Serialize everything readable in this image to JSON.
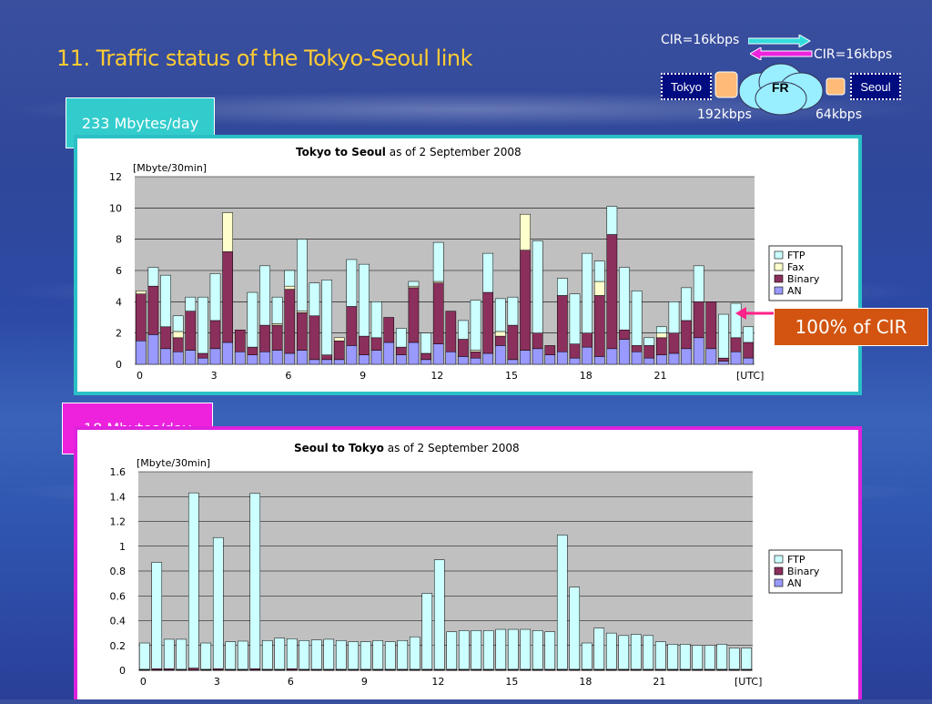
{
  "slide": {
    "title": "11.  Traffic status of the Tokyo-Seoul link",
    "tag_top": "233 Mbytes/day",
    "tag_bottom": "18 Mbytes/day",
    "callout": "100% of CIR"
  },
  "network": {
    "cir_top": "CIR=16kbps",
    "cir_right": "CIR=16kbps",
    "node_left": "Tokyo",
    "node_right": "Seoul",
    "cloud": "FR",
    "speed_left": "192kbps",
    "speed_right": "64kbps"
  },
  "colors": {
    "FTP": "#ccffff",
    "Fax": "#ffffcc",
    "Binary": "#8b2f5c",
    "AN": "#9999ff",
    "plot_bg": "#c0c0c0",
    "title": "#ffcc33",
    "tag_top": "#33cccc",
    "tag_bottom": "#ee22dd",
    "callout": "#d25410",
    "arrow": "#ff2288"
  },
  "chart_data": [
    {
      "type": "bar",
      "stacked": true,
      "title_bold": "Tokyo to Seoul",
      "title_rest": " as of 2 September 2008",
      "ylabel": "[Mbyte/30min]",
      "xlabel": "[UTC]",
      "ylim": [
        0,
        12
      ],
      "yticks": [
        "0",
        "2",
        "4",
        "6",
        "8",
        "10",
        "12"
      ],
      "xticks": [
        "0",
        "3",
        "6",
        "9",
        "12",
        "15",
        "18",
        "21"
      ],
      "grid": true,
      "legend_position": "right",
      "series": [
        {
          "name": "AN",
          "values": [
            1.5,
            1.9,
            1.0,
            0.8,
            0.9,
            0.4,
            1.0,
            1.4,
            0.8,
            0.6,
            0.8,
            0.9,
            0.7,
            0.9,
            0.3,
            0.3,
            0.3,
            1.2,
            0.6,
            0.9,
            1.4,
            0.6,
            1.4,
            0.3,
            1.3,
            0.8,
            0.5,
            0.4,
            0.7,
            1.2,
            0.3,
            0.9,
            1.0,
            0.6,
            0.8,
            0.4,
            1.1,
            0.5,
            1.0,
            1.6,
            0.8,
            0.4,
            0.6,
            0.7,
            1.0,
            1.7,
            1.0,
            0.2,
            0.8,
            0.4
          ]
        },
        {
          "name": "Binary",
          "values": [
            3.0,
            3.1,
            1.4,
            0.9,
            2.5,
            0.3,
            1.8,
            5.8,
            1.4,
            0.5,
            1.7,
            1.6,
            4.1,
            2.4,
            2.8,
            0.3,
            1.2,
            2.5,
            1.2,
            0.8,
            1.6,
            0.5,
            3.5,
            0.4,
            3.9,
            2.6,
            1.1,
            0.4,
            3.9,
            0.6,
            2.2,
            6.4,
            1.0,
            0.6,
            3.6,
            0.9,
            0.9,
            3.9,
            7.3,
            0.6,
            0.4,
            0.8,
            1.1,
            1.3,
            1.8,
            2.3,
            3.0,
            0.2,
            0.9,
            1.0
          ]
        },
        {
          "name": "Fax",
          "values": [
            0.2,
            0.0,
            0.0,
            0.4,
            0.0,
            0.0,
            0.0,
            2.5,
            0.0,
            0.0,
            0.0,
            0.1,
            0.2,
            0.1,
            0.0,
            0.0,
            0.2,
            0.0,
            0.0,
            0.0,
            0.0,
            0.0,
            0.1,
            0.0,
            0.1,
            0.0,
            0.0,
            0.1,
            0.0,
            0.3,
            0.0,
            2.3,
            0.0,
            0.0,
            0.0,
            0.0,
            0.0,
            0.9,
            0.0,
            0.0,
            0.0,
            0.0,
            0.3,
            0.0,
            0.0,
            0.0,
            0.0,
            0.0,
            0.0,
            0.0
          ]
        },
        {
          "name": "FTP",
          "values": [
            0.0,
            1.2,
            3.3,
            1.0,
            0.9,
            3.6,
            3.0,
            0.0,
            0.0,
            3.5,
            3.8,
            1.7,
            1.0,
            4.6,
            2.1,
            4.8,
            0.0,
            3.0,
            4.6,
            2.3,
            0.0,
            1.2,
            0.3,
            1.3,
            2.5,
            0.0,
            1.2,
            3.2,
            2.5,
            2.1,
            1.8,
            0.0,
            5.9,
            0.0,
            1.1,
            3.2,
            5.1,
            1.3,
            1.8,
            4.0,
            3.5,
            0.5,
            0.4,
            2.0,
            2.1,
            2.3,
            0.0,
            2.8,
            2.2,
            1.0
          ]
        },
        {
          "name": "",
          "values": [
            0,
            0,
            0,
            0,
            0,
            0,
            0,
            0,
            0,
            0,
            0,
            0,
            0,
            0,
            0,
            0,
            0,
            0,
            0,
            0,
            0,
            0,
            0,
            0,
            0,
            0,
            0,
            0,
            0,
            0,
            0,
            0,
            0,
            0,
            0,
            0,
            0,
            0,
            0,
            0,
            0,
            0,
            0,
            0,
            0,
            0,
            0,
            0,
            0,
            0
          ]
        }
      ]
    },
    {
      "type": "bar",
      "stacked": true,
      "title_bold": "Seoul to Tokyo",
      "title_rest": " as of 2 September 2008",
      "ylabel": "[Mbyte/30min]",
      "xlabel": "[UTC]",
      "ylim": [
        0,
        1.6
      ],
      "yticks": [
        "0",
        "0.2",
        "0.4",
        "0.6",
        "0.8",
        "1",
        "1.2",
        "1.4",
        "1.6"
      ],
      "xticks": [
        "0",
        "3",
        "6",
        "9",
        "12",
        "15",
        "18",
        "21"
      ],
      "grid": true,
      "legend_position": "right",
      "series": [
        {
          "name": "AN",
          "values": [
            0.003,
            0.003,
            0.003,
            0.003,
            0.003,
            0.003,
            0.003,
            0.003,
            0.003,
            0.003,
            0.003,
            0.003,
            0.003,
            0.003,
            0.003,
            0.003,
            0.003,
            0.003,
            0.003,
            0.003,
            0.003,
            0.003,
            0.003,
            0.003,
            0.003,
            0.003,
            0.003,
            0.003,
            0.003,
            0.003,
            0.003,
            0.003,
            0.003,
            0.003,
            0.003,
            0.003,
            0.003,
            0.003,
            0.003,
            0.003,
            0.003,
            0.003,
            0.003,
            0.003,
            0.003,
            0.003,
            0.003,
            0.003,
            0.003,
            0.003
          ]
        },
        {
          "name": "Binary",
          "values": [
            0.005,
            0.01,
            0.01,
            0.005,
            0.015,
            0.005,
            0.01,
            0.005,
            0.005,
            0.01,
            0.005,
            0.005,
            0.01,
            0.005,
            0.005,
            0.005,
            0.005,
            0.005,
            0.005,
            0.005,
            0.005,
            0.005,
            0.005,
            0.005,
            0.005,
            0.005,
            0.005,
            0.005,
            0.005,
            0.005,
            0.005,
            0.005,
            0.005,
            0.005,
            0.005,
            0.005,
            0.005,
            0.005,
            0.005,
            0.005,
            0.005,
            0.005,
            0.005,
            0.005,
            0.005,
            0.005,
            0.005,
            0.005,
            0.005,
            0.005
          ]
        },
        {
          "name": "FTP",
          "values": [
            0.212,
            0.857,
            0.237,
            0.242,
            1.412,
            0.212,
            1.057,
            0.222,
            0.227,
            1.412,
            0.232,
            0.252,
            0.242,
            0.232,
            0.237,
            0.242,
            0.232,
            0.222,
            0.222,
            0.232,
            0.222,
            0.232,
            0.262,
            0.612,
            0.882,
            0.302,
            0.312,
            0.312,
            0.312,
            0.322,
            0.322,
            0.322,
            0.312,
            0.302,
            1.082,
            0.662,
            0.212,
            0.332,
            0.292,
            0.272,
            0.282,
            0.272,
            0.222,
            0.202,
            0.202,
            0.192,
            0.192,
            0.202,
            0.172,
            0.172
          ]
        }
      ]
    }
  ]
}
